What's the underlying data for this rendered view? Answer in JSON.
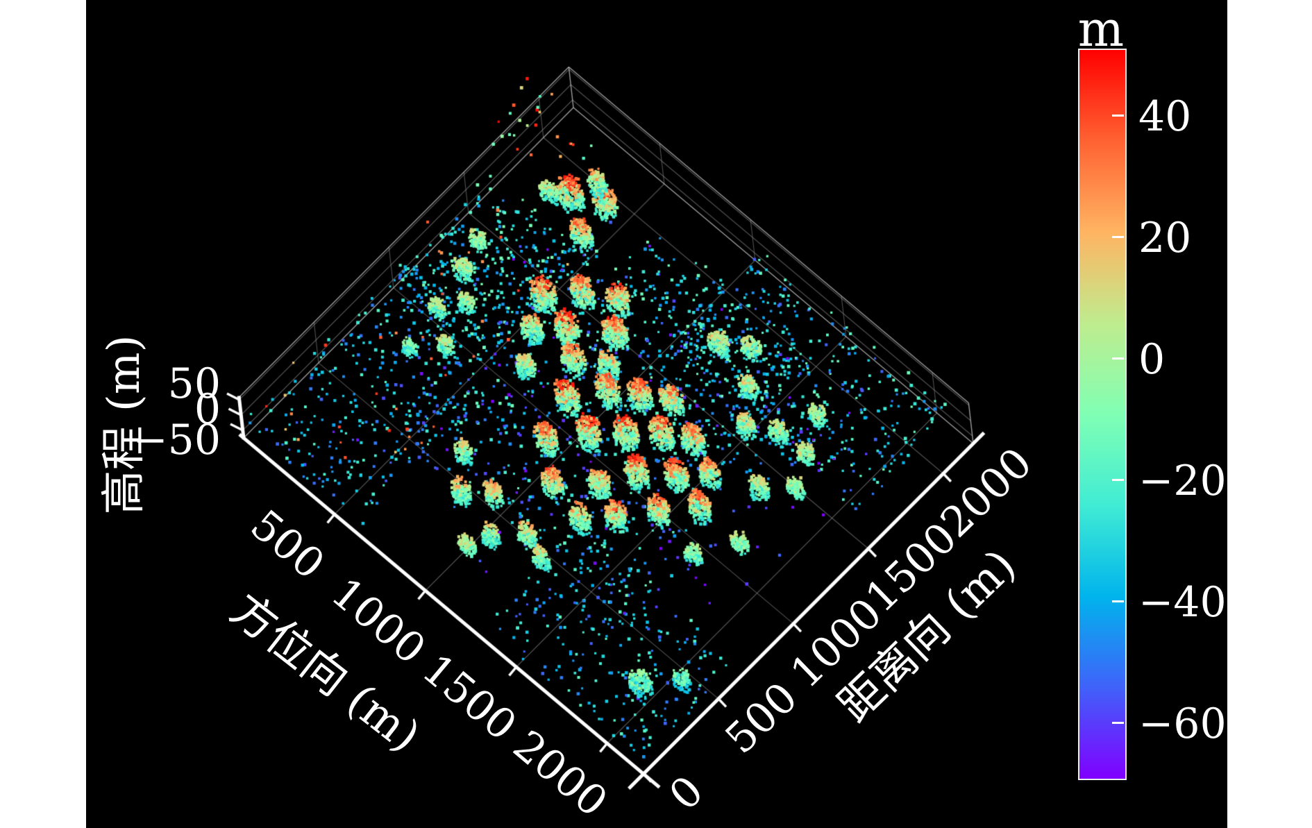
{
  "figure": {
    "background_color": "#ffffff",
    "plot_background_color": "#000000",
    "text_color": "#ffffff",
    "axis_line_color": "#ffffff",
    "grid_line_color": "#9a9a9a"
  },
  "axes": {
    "x": {
      "label": "方位向 (m)",
      "tick_labels": [
        "500",
        "1000",
        "1500",
        "2000"
      ],
      "tick_values": [
        500,
        1000,
        1500,
        2000
      ],
      "range_m": [
        0,
        2200
      ]
    },
    "y": {
      "label": "距离向 (m)",
      "tick_labels": [
        "0",
        "500",
        "1000",
        "1500",
        "2000"
      ],
      "tick_values": [
        0,
        500,
        1000,
        1500,
        2000
      ],
      "range_m": [
        0,
        2200
      ]
    },
    "z": {
      "label": "高程 (m)",
      "tick_labels": [
        "50",
        "0",
        "−50"
      ],
      "tick_values": [
        50,
        0,
        -50
      ],
      "range_m": [
        -75,
        58
      ]
    }
  },
  "colorbar": {
    "title": "m",
    "tick_labels": [
      "40",
      "20",
      "0",
      "−20",
      "−40",
      "−60"
    ],
    "tick_values": [
      40,
      20,
      0,
      -20,
      -40,
      -60
    ],
    "value_min": -69,
    "value_max": 51,
    "colormap": "rainbow",
    "gradient_stops_bottom_to_top": [
      "#8000ff",
      "#4062fa",
      "#00b4ec",
      "#40ecd4",
      "#80ffb4",
      "#bfec8e",
      "#ffb462",
      "#ff6232",
      "#ff0000"
    ]
  },
  "chart_data": {
    "type": "scatter",
    "projection": "3d",
    "color_encoding": "elevation_m",
    "legend": "none",
    "grid": true,
    "x_axis": "方位向 (m)",
    "y_axis": "距离向 (m)",
    "z_axis": "高程 (m)",
    "cluster_fields": [
      "x_m",
      "y_m",
      "radius_m",
      "points",
      "z_top_m",
      "kind"
    ],
    "clusters": [
      [
        330,
        1800,
        60,
        260,
        46,
        "t"
      ],
      [
        460,
        1870,
        55,
        210,
        42,
        "t"
      ],
      [
        480,
        1690,
        50,
        200,
        38,
        "t"
      ],
      [
        370,
        1930,
        45,
        150,
        30,
        "g"
      ],
      [
        250,
        1750,
        42,
        120,
        20,
        "g"
      ],
      [
        550,
        1350,
        60,
        240,
        44,
        "t"
      ],
      [
        660,
        1480,
        55,
        230,
        40,
        "t"
      ],
      [
        720,
        1300,
        58,
        240,
        46,
        "t"
      ],
      [
        610,
        1200,
        50,
        190,
        34,
        "g"
      ],
      [
        790,
        1560,
        55,
        210,
        42,
        "t"
      ],
      [
        880,
        1430,
        58,
        240,
        45,
        "t"
      ],
      [
        830,
        1210,
        55,
        210,
        38,
        "t"
      ],
      [
        950,
        1300,
        50,
        200,
        30,
        "g"
      ],
      [
        700,
        1050,
        45,
        160,
        22,
        "g"
      ],
      [
        930,
        1050,
        58,
        250,
        46,
        "t"
      ],
      [
        1030,
        1200,
        55,
        230,
        44,
        "t"
      ],
      [
        1100,
        990,
        58,
        250,
        47,
        "t"
      ],
      [
        990,
        840,
        55,
        220,
        40,
        "t"
      ],
      [
        1140,
        1280,
        55,
        220,
        42,
        "t"
      ],
      [
        1210,
        1100,
        58,
        240,
        46,
        "t"
      ],
      [
        1250,
        1360,
        55,
        210,
        40,
        "t"
      ],
      [
        1320,
        1210,
        58,
        240,
        44,
        "t"
      ],
      [
        1360,
        990,
        55,
        230,
        46,
        "t"
      ],
      [
        1430,
        1280,
        55,
        210,
        38,
        "t"
      ],
      [
        1490,
        1100,
        55,
        220,
        44,
        "t"
      ],
      [
        1280,
        840,
        50,
        200,
        36,
        "t"
      ],
      [
        1140,
        700,
        50,
        200,
        40,
        "t"
      ],
      [
        1320,
        660,
        50,
        190,
        34,
        "g"
      ],
      [
        1430,
        770,
        50,
        200,
        42,
        "t"
      ],
      [
        1540,
        920,
        50,
        200,
        40,
        "t"
      ],
      [
        1580,
        1210,
        50,
        190,
        36,
        "t"
      ],
      [
        1650,
        1060,
        50,
        200,
        42,
        "t"
      ],
      [
        220,
        1210,
        45,
        130,
        14,
        "g"
      ],
      [
        260,
        990,
        40,
        110,
        8,
        "g"
      ],
      [
        180,
        1360,
        40,
        100,
        10,
        "c"
      ],
      [
        330,
        1100,
        40,
        110,
        12,
        "g"
      ],
      [
        400,
        880,
        40,
        100,
        8,
        "g"
      ],
      [
        290,
        770,
        35,
        80,
        0,
        "c"
      ],
      [
        1210,
        1720,
        50,
        160,
        18,
        "g"
      ],
      [
        1320,
        1800,
        48,
        150,
        14,
        "g"
      ],
      [
        1430,
        1650,
        45,
        140,
        20,
        "g"
      ],
      [
        1540,
        1500,
        45,
        150,
        24,
        "g"
      ],
      [
        1650,
        1580,
        45,
        130,
        12,
        "g"
      ],
      [
        1760,
        1320,
        45,
        140,
        18,
        "g"
      ],
      [
        1720,
        1760,
        40,
        110,
        8,
        "c"
      ],
      [
        1870,
        1430,
        40,
        120,
        10,
        "c"
      ],
      [
        1800,
        1580,
        40,
        110,
        12,
        "c"
      ],
      [
        880,
        400,
        45,
        150,
        26,
        "g"
      ],
      [
        990,
        480,
        45,
        150,
        30,
        "t"
      ],
      [
        1100,
        330,
        40,
        130,
        22,
        "g"
      ],
      [
        1210,
        440,
        45,
        140,
        28,
        "g"
      ],
      [
        1060,
        220,
        40,
        110,
        14,
        "c"
      ],
      [
        770,
        550,
        40,
        130,
        18,
        "g"
      ],
      [
        1320,
        400,
        40,
        120,
        20,
        "g"
      ],
      [
        1980,
        260,
        55,
        170,
        0,
        "c"
      ],
      [
        2090,
        400,
        40,
        100,
        -6,
        "c"
      ],
      [
        1760,
        880,
        40,
        110,
        6,
        "c"
      ],
      [
        1870,
        1060,
        40,
        110,
        10,
        "c"
      ]
    ],
    "noise_region_fields": [
      "x0_m",
      "x1_m",
      "y0_m",
      "y1_m",
      "points",
      "z_min_m",
      "z_max_m"
    ],
    "noise_regions": [
      [
        0,
        660,
        0,
        1100,
        330,
        -55,
        -18
      ],
      [
        0,
        550,
        990,
        1650,
        300,
        -48,
        -8
      ],
      [
        990,
        2090,
        1540,
        2200,
        380,
        -55,
        -12
      ],
      [
        1320,
        2200,
        0,
        660,
        220,
        -55,
        -15
      ],
      [
        440,
        1760,
        440,
        1760,
        550,
        -62,
        -12
      ],
      [
        -130,
        260,
        1760,
        2090,
        26,
        -20,
        55
      ],
      [
        220,
        1980,
        220,
        1980,
        130,
        -72,
        -48
      ],
      [
        660,
        1540,
        1210,
        1980,
        260,
        -50,
        -10
      ],
      [
        0,
        660,
        0,
        1650,
        40,
        15,
        45
      ]
    ]
  }
}
